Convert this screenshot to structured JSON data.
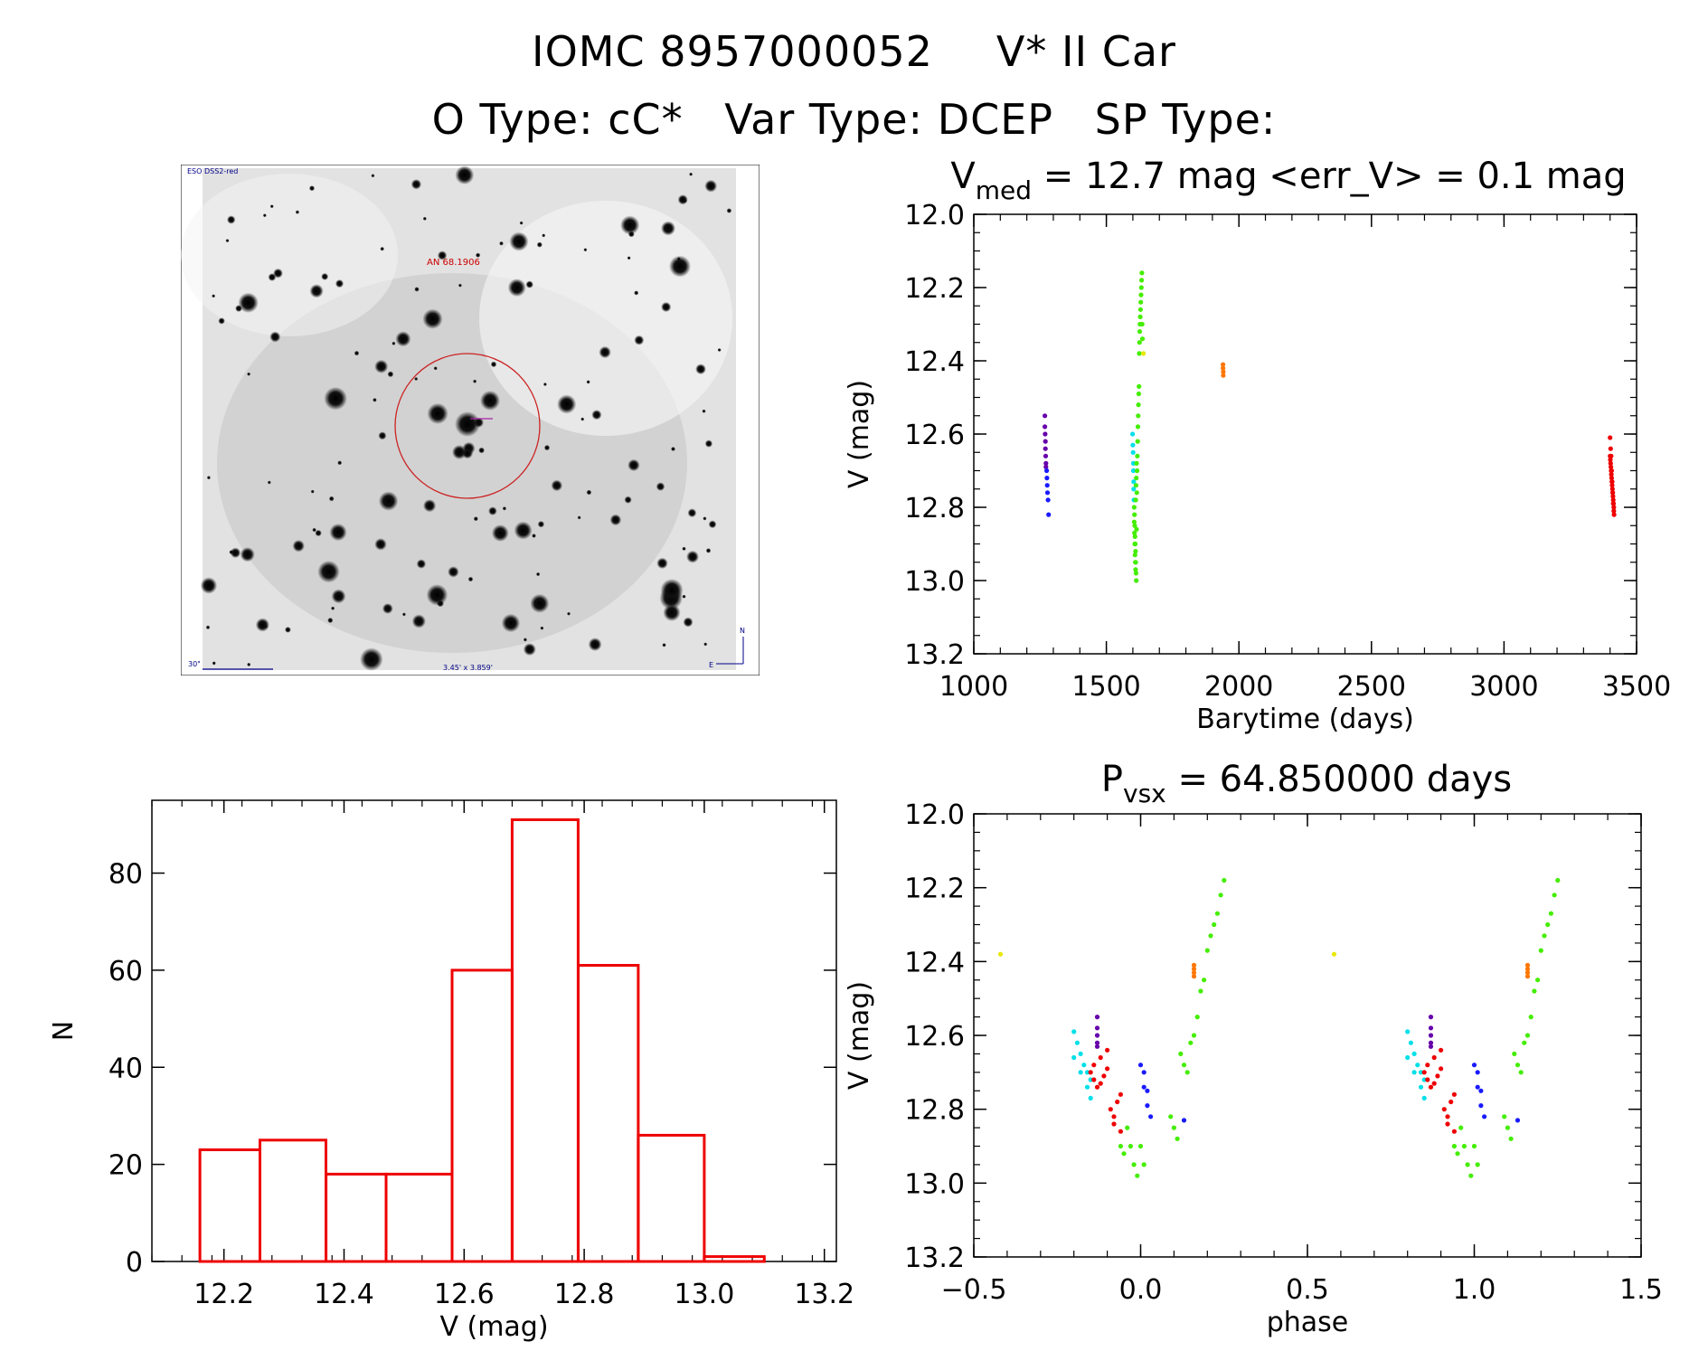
{
  "header": {
    "star_id": "IOMC 8957000052",
    "star_name": "V* II Car",
    "otype_label": "O Type:",
    "otype": "cC*",
    "vartype_label": "Var Type:",
    "vartype": "DCEP",
    "sptype_label": "SP Type:",
    "sptype": ""
  },
  "finder_chart": {
    "survey_label": "ESO DSS2-red",
    "object_label": "AN 68.1906",
    "scale_label": "30\"",
    "fov_label": "3.45' x 3.859'",
    "north": "N",
    "east": "E"
  },
  "colors": {
    "purple": "#6600aa",
    "blue": "#1a1aff",
    "cyan": "#00e0e8",
    "green": "#44ee00",
    "yellow": "#e8e800",
    "orange": "#ff7700",
    "red": "#ee0000",
    "hist": "#ee0000"
  },
  "chart_data": [
    {
      "type": "scatter",
      "id": "lightcurve",
      "title": "V_med = 12.7 mag <err_V> = 0.1 mag",
      "title_main": "V",
      "title_sub": "med",
      "title_rest": " = 12.7 mag <err_V> = 0.1 mag",
      "xlabel": "Barytime (days)",
      "ylabel": "V (mag)",
      "xlim": [
        1000,
        3500
      ],
      "ylim": [
        13.2,
        12.0
      ],
      "xticks": [
        1000,
        1500,
        2000,
        2500,
        3000,
        3500
      ],
      "yticks": [
        12.0,
        12.2,
        12.4,
        12.6,
        12.8,
        13.0,
        13.2
      ],
      "groups": [
        {
          "color": "purple",
          "x": [
            1268,
            1268,
            1269,
            1270,
            1270,
            1271,
            1272,
            1272
          ],
          "y": [
            12.55,
            12.58,
            12.6,
            12.62,
            12.64,
            12.66,
            12.68,
            12.69
          ]
        },
        {
          "color": "blue",
          "x": [
            1275,
            1276,
            1277,
            1278,
            1280,
            1282
          ],
          "y": [
            12.7,
            12.72,
            12.74,
            12.76,
            12.78,
            12.82
          ]
        },
        {
          "color": "cyan",
          "x": [
            1599,
            1600,
            1601,
            1602,
            1602,
            1603,
            1603,
            1604
          ],
          "y": [
            12.6,
            12.63,
            12.65,
            12.68,
            12.7,
            12.73,
            12.75,
            12.78
          ]
        },
        {
          "color": "green",
          "x": [
            1605,
            1606,
            1607,
            1608,
            1609,
            1610,
            1611,
            1612,
            1613,
            1614,
            1615,
            1616,
            1617,
            1618,
            1619,
            1620,
            1621,
            1622,
            1623,
            1624,
            1625,
            1626,
            1627,
            1628,
            1629,
            1630,
            1631,
            1632,
            1633,
            1634,
            1635,
            1636,
            1605,
            1606,
            1607,
            1608,
            1609,
            1610,
            1611,
            1612,
            1613,
            1614
          ],
          "y": [
            12.8,
            12.82,
            12.85,
            12.88,
            12.9,
            12.92,
            12.95,
            12.98,
            13.0,
            12.86,
            12.76,
            12.7,
            12.66,
            12.62,
            12.58,
            12.55,
            12.52,
            12.49,
            12.47,
            12.38,
            12.35,
            12.32,
            12.3,
            12.28,
            12.26,
            12.24,
            12.22,
            12.2,
            12.18,
            12.16,
            12.3,
            12.34,
            12.84,
            12.87,
            12.9,
            12.93,
            12.95,
            12.97,
            12.78,
            12.74,
            12.72,
            12.68
          ]
        },
        {
          "color": "yellow",
          "x": [
            1640
          ],
          "y": [
            12.38
          ]
        },
        {
          "color": "orange",
          "x": [
            1940,
            1940,
            1941,
            1941
          ],
          "y": [
            12.41,
            12.42,
            12.43,
            12.44
          ]
        },
        {
          "color": "red",
          "x": [
            3400,
            3401,
            3402,
            3403,
            3404,
            3405,
            3406,
            3407,
            3408,
            3409,
            3410,
            3411,
            3412,
            3413,
            3414,
            3415,
            3400,
            3402,
            3404,
            3406,
            3408,
            3410,
            3412,
            3414
          ],
          "y": [
            12.66,
            12.67,
            12.68,
            12.69,
            12.7,
            12.71,
            12.72,
            12.73,
            12.74,
            12.75,
            12.76,
            12.77,
            12.78,
            12.79,
            12.8,
            12.82,
            12.61,
            12.64,
            12.66,
            12.7,
            12.73,
            12.76,
            12.79,
            12.81
          ]
        }
      ]
    },
    {
      "type": "bar",
      "id": "histogram",
      "xlabel": "V (mag)",
      "ylabel": "N",
      "xlim": [
        12.08,
        13.22
      ],
      "ylim": [
        0,
        95
      ],
      "xticks": [
        12.2,
        12.4,
        12.6,
        12.8,
        13.0,
        13.2
      ],
      "xtick_labels": [
        "12.2",
        "12.4",
        "12.6",
        "12.8",
        "13.0",
        "13.2"
      ],
      "yticks": [
        0,
        20,
        40,
        60,
        80
      ],
      "bin_edges": [
        12.16,
        12.26,
        12.37,
        12.47,
        12.58,
        12.68,
        12.79,
        12.89,
        13.0,
        13.1
      ],
      "values": [
        23,
        25,
        18,
        18,
        60,
        91,
        61,
        26,
        1
      ]
    },
    {
      "type": "scatter",
      "id": "phased",
      "title": "P_vsx = 64.850000 days",
      "title_main": "P",
      "title_sub": "vsx",
      "title_rest": " = 64.850000 days",
      "xlabel": "phase",
      "ylabel": "V (mag)",
      "xlim": [
        -0.5,
        1.5
      ],
      "ylim": [
        13.2,
        12.0
      ],
      "xticks": [
        -0.5,
        0.0,
        0.5,
        1.0,
        1.5
      ],
      "xtick_labels": [
        "−0.5",
        "0.0",
        "0.5",
        "1.0",
        "1.5"
      ],
      "yticks": [
        12.0,
        12.2,
        12.4,
        12.6,
        12.8,
        13.0,
        13.2
      ],
      "groups": [
        {
          "color": "yellow",
          "x": [
            -0.42
          ],
          "y": [
            12.38
          ]
        },
        {
          "color": "cyan",
          "x": [
            -0.2,
            -0.19,
            -0.18,
            -0.17,
            -0.16,
            -0.15,
            -0.2,
            -0.18,
            -0.16,
            -0.15
          ],
          "y": [
            12.59,
            12.62,
            12.65,
            12.68,
            12.7,
            12.72,
            12.66,
            12.7,
            12.74,
            12.77
          ]
        },
        {
          "color": "purple",
          "x": [
            -0.13,
            -0.13,
            -0.13,
            -0.13,
            -0.13
          ],
          "y": [
            12.55,
            12.58,
            12.6,
            12.62,
            12.63
          ]
        },
        {
          "color": "red",
          "x": [
            -0.15,
            -0.14,
            -0.13,
            -0.12,
            -0.11,
            -0.1,
            -0.09,
            -0.08,
            -0.07,
            -0.06,
            -0.14,
            -0.12,
            -0.1,
            -0.08,
            -0.06
          ],
          "y": [
            12.7,
            12.72,
            12.74,
            12.73,
            12.71,
            12.69,
            12.8,
            12.82,
            12.78,
            12.76,
            12.68,
            12.66,
            12.64,
            12.84,
            12.86
          ]
        },
        {
          "color": "blue",
          "x": [
            0.0,
            0.01,
            0.01,
            0.02,
            0.02,
            0.03
          ],
          "y": [
            12.68,
            12.7,
            12.74,
            12.75,
            12.79,
            12.82
          ]
        },
        {
          "color": "green",
          "x": [
            -0.06,
            -0.05,
            -0.04,
            -0.03,
            -0.02,
            -0.01,
            0.0,
            0.01,
            0.09,
            0.1,
            0.11,
            0.12,
            0.13,
            0.14,
            0.15,
            0.16,
            0.17,
            0.18,
            0.19,
            0.2,
            0.21,
            0.22,
            0.23,
            0.24,
            0.25
          ],
          "y": [
            12.9,
            12.92,
            12.85,
            12.9,
            12.95,
            12.98,
            12.9,
            12.95,
            12.82,
            12.85,
            12.88,
            12.65,
            12.68,
            12.7,
            12.62,
            12.6,
            12.55,
            12.48,
            12.45,
            12.37,
            12.33,
            12.3,
            12.27,
            12.22,
            12.18
          ]
        },
        {
          "color": "blue",
          "x": [
            0.13
          ],
          "y": [
            12.83
          ]
        },
        {
          "color": "orange",
          "x": [
            0.16,
            0.16,
            0.16,
            0.16
          ],
          "y": [
            12.41,
            12.42,
            12.43,
            12.44
          ]
        },
        {
          "color": "yellow",
          "x": [
            0.58
          ],
          "y": [
            12.38
          ]
        },
        {
          "color": "cyan",
          "x": [
            0.8,
            0.81,
            0.82,
            0.83,
            0.84,
            0.85,
            0.8,
            0.82,
            0.84,
            0.85
          ],
          "y": [
            12.59,
            12.62,
            12.65,
            12.68,
            12.7,
            12.72,
            12.66,
            12.7,
            12.74,
            12.77
          ]
        },
        {
          "color": "purple",
          "x": [
            0.87,
            0.87,
            0.87,
            0.87,
            0.87
          ],
          "y": [
            12.55,
            12.58,
            12.6,
            12.62,
            12.63
          ]
        },
        {
          "color": "red",
          "x": [
            0.85,
            0.86,
            0.87,
            0.88,
            0.89,
            0.9,
            0.91,
            0.92,
            0.93,
            0.94,
            0.86,
            0.88,
            0.9,
            0.92,
            0.94
          ],
          "y": [
            12.7,
            12.72,
            12.74,
            12.73,
            12.71,
            12.69,
            12.8,
            12.82,
            12.78,
            12.76,
            12.68,
            12.66,
            12.64,
            12.84,
            12.86
          ]
        },
        {
          "color": "blue",
          "x": [
            1.0,
            1.01,
            1.01,
            1.02,
            1.02,
            1.03
          ],
          "y": [
            12.68,
            12.7,
            12.74,
            12.75,
            12.79,
            12.82
          ]
        },
        {
          "color": "green",
          "x": [
            0.94,
            0.95,
            0.96,
            0.97,
            0.98,
            0.99,
            1.0,
            1.01,
            1.09,
            1.1,
            1.11,
            1.12,
            1.13,
            1.14,
            1.15,
            1.16,
            1.17,
            1.18,
            1.19,
            1.2,
            1.21,
            1.22,
            1.23,
            1.24,
            1.25
          ],
          "y": [
            12.9,
            12.92,
            12.85,
            12.9,
            12.95,
            12.98,
            12.9,
            12.95,
            12.82,
            12.85,
            12.88,
            12.65,
            12.68,
            12.7,
            12.62,
            12.6,
            12.55,
            12.48,
            12.45,
            12.37,
            12.33,
            12.3,
            12.27,
            12.22,
            12.18
          ]
        },
        {
          "color": "blue",
          "x": [
            1.13
          ],
          "y": [
            12.83
          ]
        },
        {
          "color": "orange",
          "x": [
            1.16,
            1.16,
            1.16,
            1.16
          ],
          "y": [
            12.41,
            12.42,
            12.43,
            12.44
          ]
        }
      ]
    }
  ]
}
